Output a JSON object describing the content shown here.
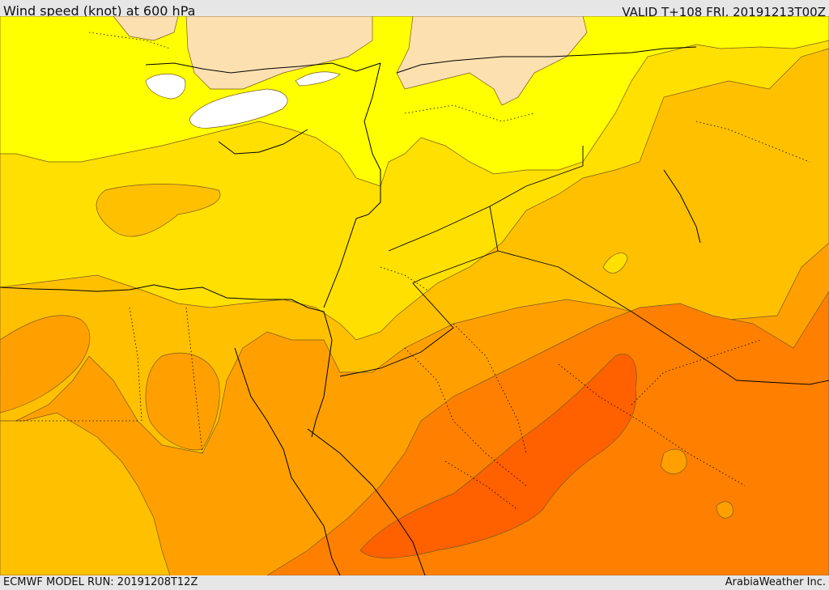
{
  "header": {
    "title": "Wind speed (knot) at 600 hPa",
    "valid": "VALID T+108 FRI. 20191213T00Z"
  },
  "footer": {
    "model_run": "ECMWF MODEL RUN: 20191208T12Z",
    "credit": "ArabiaWeather Inc."
  },
  "map": {
    "variable": "Wind speed",
    "unit": "knot",
    "level": "600 hPa",
    "colors": {
      "calm": "#ffffff",
      "light": "#fde0b0",
      "yellow": "#ffff00",
      "gold": "#ffe000",
      "amber": "#ffc000",
      "orange": "#ffa000",
      "dark_orange": "#ff8000",
      "red_orange": "#ff6000"
    }
  }
}
